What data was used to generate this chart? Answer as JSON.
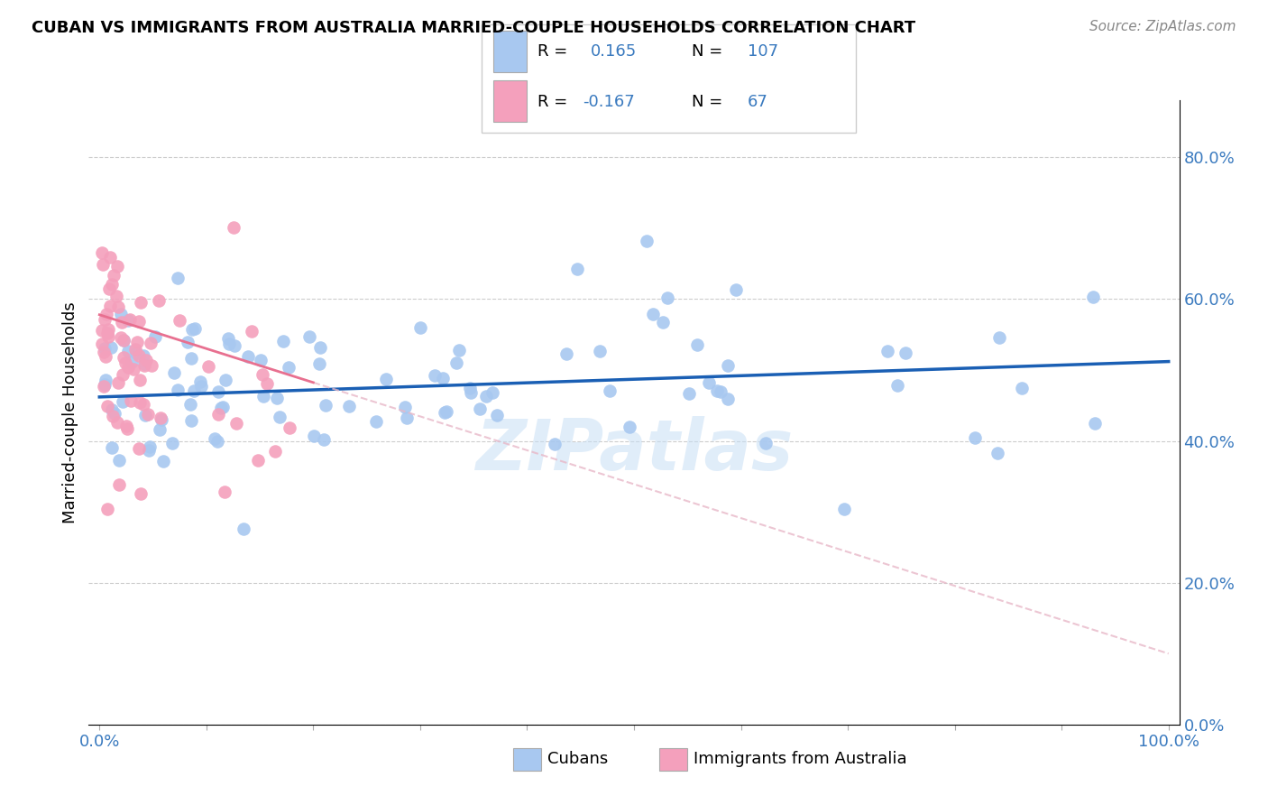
{
  "title": "CUBAN VS IMMIGRANTS FROM AUSTRALIA MARRIED-COUPLE HOUSEHOLDS CORRELATION CHART",
  "source": "Source: ZipAtlas.com",
  "ylabel": "Married-couple Households",
  "color_cubans": "#a8c8f0",
  "color_australia": "#f4a0bc",
  "color_line_cubans": "#1a5fb4",
  "color_line_australia": "#e8b0c0",
  "watermark": "ZIPatlas",
  "ylim": [
    0.0,
    0.88
  ],
  "xlim": [
    -0.01,
    1.01
  ],
  "yticks": [
    0.0,
    0.2,
    0.4,
    0.6,
    0.8
  ],
  "yticklabels": [
    "0.0%",
    "20.0%",
    "40.0%",
    "60.0%",
    "80.0%"
  ],
  "xtick_left": "0.0%",
  "xtick_right": "100.0%",
  "legend_label1": "Cubans",
  "legend_label2": "Immigrants from Australia",
  "legend_r1": "0.165",
  "legend_n1": "107",
  "legend_r2": "-0.167",
  "legend_n2": "67",
  "cubans_line_x": [
    0.0,
    1.0
  ],
  "cubans_line_y": [
    0.462,
    0.512
  ],
  "australia_line_x": [
    0.0,
    1.0
  ],
  "australia_line_y": [
    0.578,
    0.1
  ]
}
